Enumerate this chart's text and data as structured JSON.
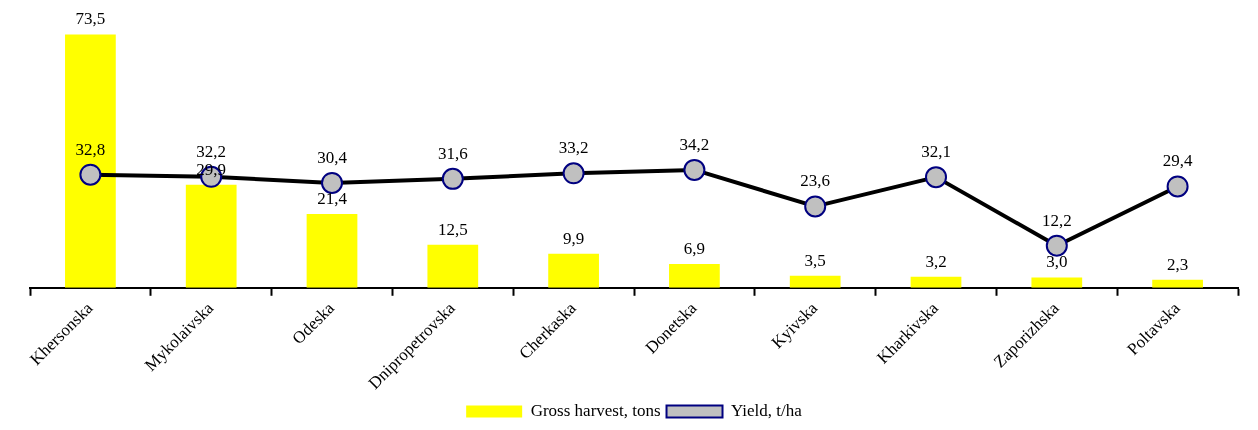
{
  "chart_data": {
    "type": "bar",
    "categories": [
      "Khersonska",
      "Mykolaivska",
      "Odeska",
      "Dnipropetrovska",
      "Cherkaska",
      "Donetska",
      "Kyivska",
      "Kharkivska",
      "Zaporizhska",
      "Poltavska"
    ],
    "series": [
      {
        "name": "Gross harvest, tons",
        "color": "#ffff00",
        "values": [
          73.5,
          29.9,
          21.4,
          12.5,
          9.9,
          6.9,
          3.5,
          3.2,
          3.0,
          2.3
        ],
        "value_labels": [
          "73,5",
          "29,9",
          "21,4",
          "12,5",
          "9,9",
          "6,9",
          "3,5",
          "3,2",
          "3,0",
          "2,3"
        ]
      },
      {
        "name": "Yield, t/ha",
        "type": "line",
        "color": "#000000",
        "marker": "circle",
        "values": [
          32.8,
          32.2,
          30.4,
          31.6,
          33.2,
          34.2,
          23.6,
          32.1,
          12.2,
          29.4
        ],
        "value_labels": [
          "32,8",
          "32,2",
          "30,4",
          "31,6",
          "33,2",
          "34,2",
          "23,6",
          "32,1",
          "12,2",
          "29,4"
        ]
      }
    ],
    "tick_labels": "x",
    "grid": false,
    "legend": "bottom"
  }
}
